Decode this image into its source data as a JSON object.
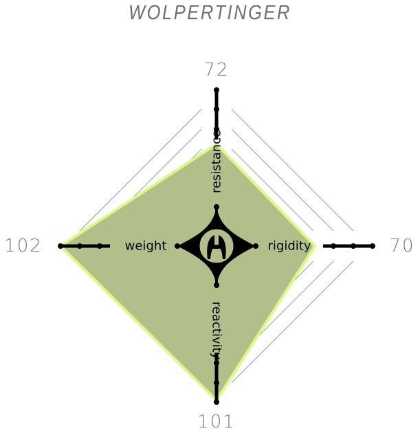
{
  "chart_data": {
    "type": "radar",
    "title": "WOLPERTINGER",
    "axes": [
      "resistance",
      "rigidity",
      "reactivity",
      "weight"
    ],
    "values": [
      72,
      70,
      101,
      102
    ],
    "value_labels": [
      "72",
      "70",
      "101",
      "102"
    ],
    "rlim": [
      15.5,
      102
    ],
    "grid": true,
    "colors": {
      "fill": "#b3bf8b",
      "outline": "#d8fb80",
      "axis": "#000000",
      "grid": "#9a9a9a",
      "title": "#6f6f6f",
      "value_text": "#777777"
    }
  },
  "emblem": "wolpertinger-logo-icon"
}
